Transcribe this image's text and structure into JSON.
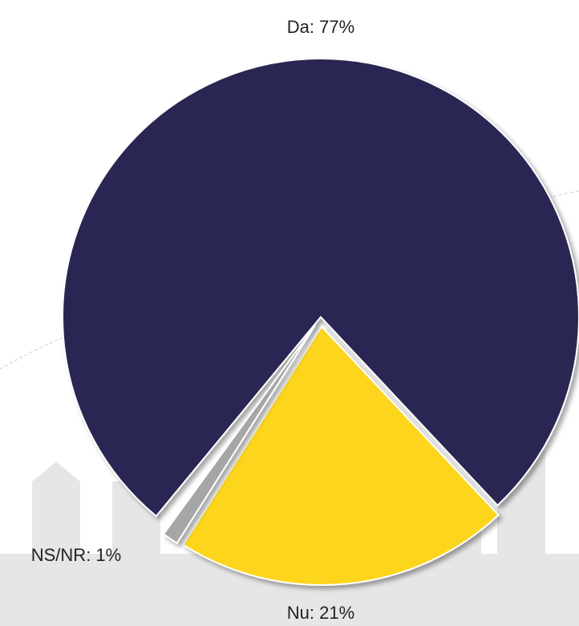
{
  "chart_data": {
    "type": "pie",
    "values": [
      77,
      21,
      1
    ],
    "value_labels": [
      "Da: 77%",
      "Nu: 21%",
      "NS/NR: 1%"
    ],
    "colors": [
      "#2c2553",
      "#fdd51e",
      "#a6a6a6"
    ]
  }
}
